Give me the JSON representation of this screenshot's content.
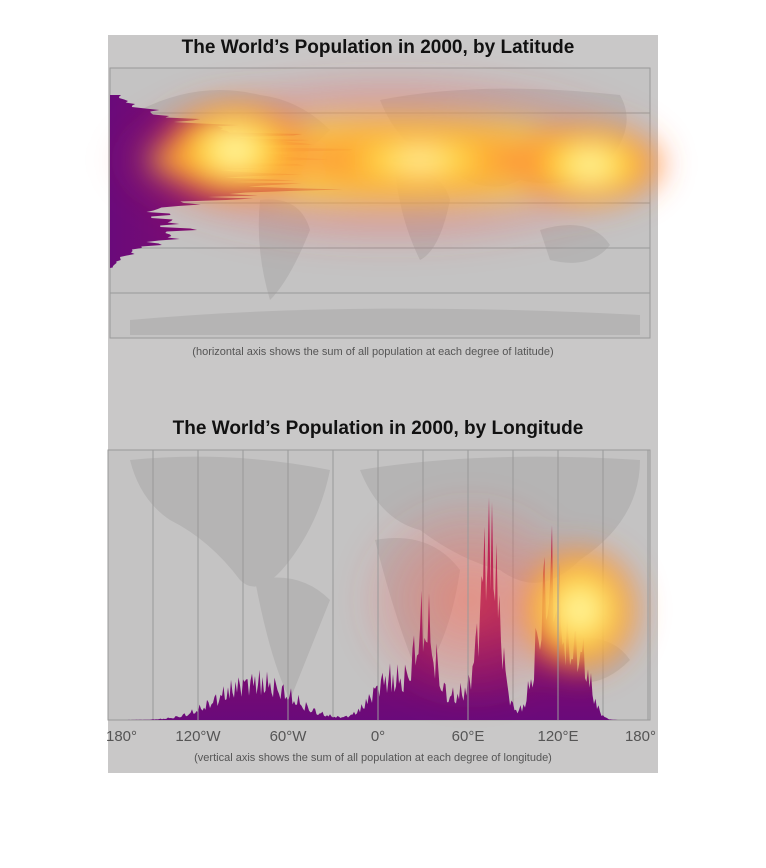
{
  "chart_data": [
    {
      "type": "area",
      "title": "The World’s Population in 2000, by Latitude",
      "note": "(horizontal axis shows the sum of all population at each degree of latitude)"
    },
    {
      "type": "area",
      "title": "The World’s Population in 2000, by Longitude",
      "note": "(vertical axis shows the sum of all population at each degree of longitude)",
      "xlim": [
        -180,
        180
      ],
      "xticks": [
        {
          "value": -180,
          "label": "180°"
        },
        {
          "value": -120,
          "label": "120°W"
        },
        {
          "value": -60,
          "label": "60°W"
        },
        {
          "value": 0,
          "label": "0°"
        },
        {
          "value": 60,
          "label": "60°E"
        },
        {
          "value": 120,
          "label": "120°E"
        },
        {
          "value": 180,
          "label": "180°"
        }
      ]
    }
  ]
}
